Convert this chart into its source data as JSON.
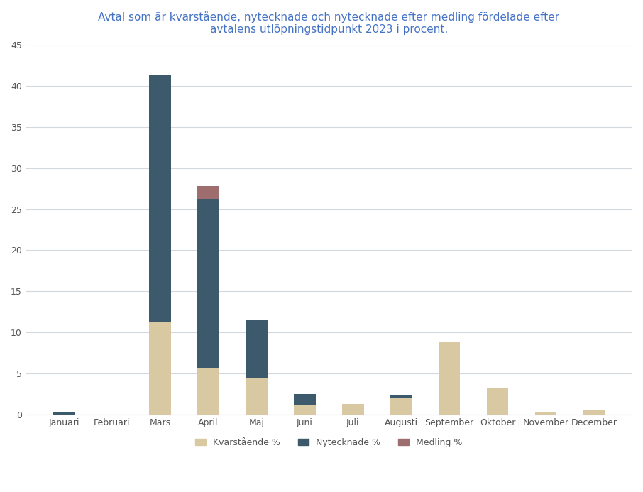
{
  "months": [
    "Januari",
    "Februari",
    "Mars",
    "April",
    "Maj",
    "Juni",
    "Juli",
    "Augusti",
    "September",
    "Oktober",
    "November",
    "December"
  ],
  "kvarstående": [
    0.0,
    0.0,
    11.2,
    5.7,
    4.5,
    1.2,
    1.3,
    2.0,
    8.8,
    3.3,
    0.3,
    0.5
  ],
  "nytecknade": [
    0.3,
    0.0,
    30.2,
    20.5,
    7.0,
    1.3,
    0.0,
    0.3,
    0.0,
    0.0,
    0.0,
    0.0
  ],
  "medling": [
    0.0,
    0.0,
    0.0,
    1.6,
    0.0,
    0.0,
    0.0,
    0.0,
    0.0,
    0.0,
    0.0,
    0.0
  ],
  "color_kvarstående": "#D9C9A3",
  "color_nytecknade": "#3D5A6C",
  "color_medling": "#9E6E6E",
  "title": "Avtal som är kvarstående, nytecknade och nytecknade efter medling fördelade efter\navtalens utlöpningstidpunkt 2023 i procent.",
  "title_fontsize": 11,
  "title_color": "#4472C4",
  "ylim": [
    0,
    45
  ],
  "yticks": [
    0,
    5,
    10,
    15,
    20,
    25,
    30,
    35,
    40,
    45
  ],
  "legend_labels": [
    "Kvarstående %",
    "Nytecknade %",
    "Medling %"
  ],
  "background_color": "#FFFFFF",
  "grid_color": "#D0D8E0",
  "bar_width": 0.45
}
